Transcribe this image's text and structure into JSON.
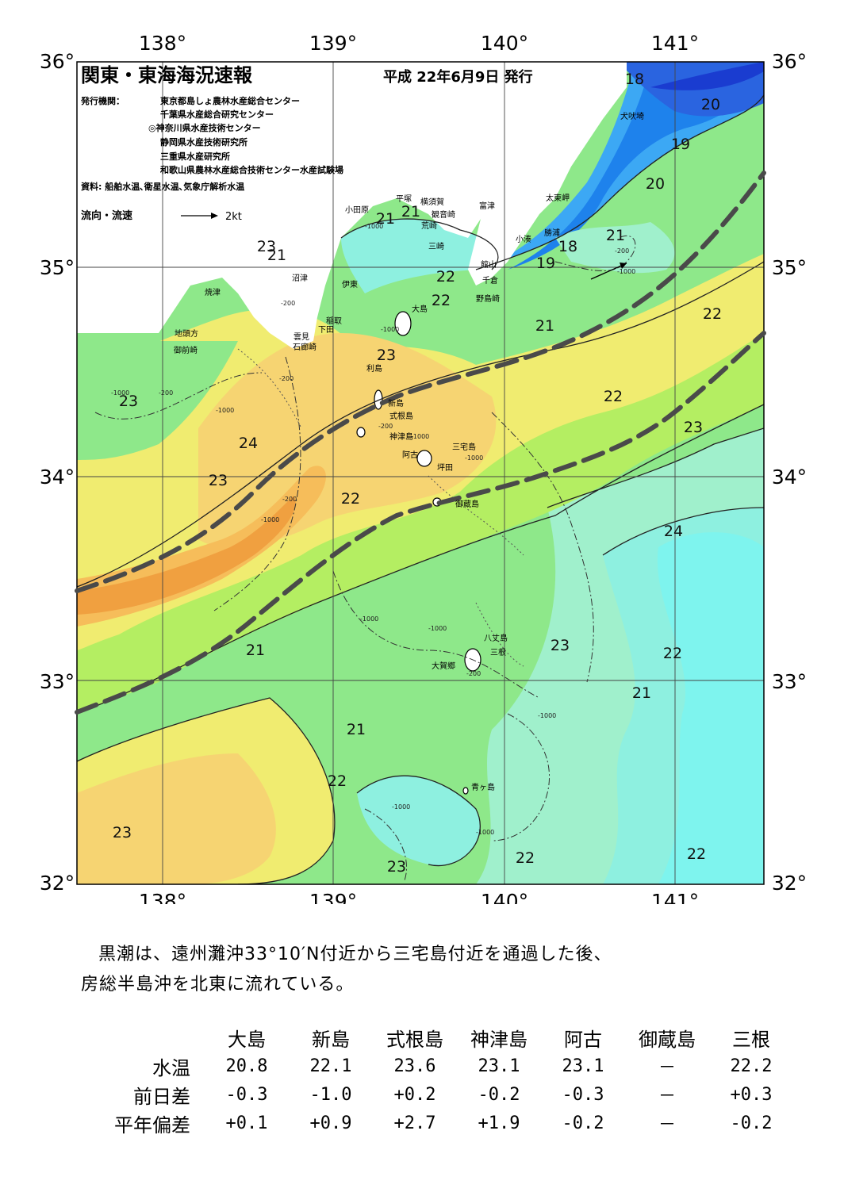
{
  "header": {
    "title": "関東・東海海況速報",
    "date": "平成 22年6月9日 発行",
    "issuer_label": "発行機関：",
    "issuers": [
      "東京都島しょ農林水産総合センター",
      "千葉県水産総合研究センター",
      "◎神奈川県水産技術センター",
      "静岡県水産技術研究所",
      "三重県水産研究所",
      "和歌山県農林水産総合技術センター水産試験場"
    ],
    "source": "資料: 船舶水温､衛星水温､気象庁解析水温",
    "current_legend": "流向・流速",
    "current_scale": "2kt"
  },
  "axes": {
    "lon_labels": [
      "138°",
      "139°",
      "140°",
      "141°"
    ],
    "lat_labels": [
      "36°",
      "35°",
      "34°",
      "33°",
      "32°"
    ]
  },
  "isotherm_labels": [
    "18",
    "20",
    "19",
    "20",
    "21",
    "21",
    "21",
    "23",
    "21",
    "22",
    "22",
    "18",
    "19",
    "21",
    "22",
    "23",
    "23",
    "22",
    "23",
    "24",
    "23",
    "22",
    "24",
    "21",
    "23",
    "22",
    "21",
    "21",
    "22",
    "23",
    "23",
    "22",
    "22",
    "21"
  ],
  "place_names": [
    "犬吠埼",
    "太東岬",
    "勝浦",
    "小湊",
    "富津",
    "横須賀",
    "観音崎",
    "荒崎",
    "平塚",
    "小田原",
    "三崎",
    "館山",
    "千倉",
    "野島崎",
    "沼津",
    "伊東",
    "大島",
    "焼津",
    "稲取",
    "下田",
    "雲見",
    "石廊崎",
    "地頭方",
    "御前崎",
    "利島",
    "新島",
    "式根島",
    "神津島",
    "三宅島",
    "阿古",
    "坪田",
    "御蔵島",
    "八丈島",
    "三根",
    "大賀郷",
    "青ヶ島"
  ],
  "depth_labels": [
    "-1000",
    "-200",
    "-1000",
    "-200",
    "-1000",
    "-200",
    "-1000",
    "-200",
    "-1000",
    "-200",
    "-1000",
    "-1000",
    "-1000",
    "-200",
    "-1000",
    "-1000",
    "-200",
    "-1000",
    "-1000",
    "-1000"
  ],
  "legend_colors": {
    "c18": "#1e82ec",
    "c19": "#3ca8f4",
    "c20": "#5bd4f4",
    "c21": "#8ef0e0",
    "c22": "#8ee88a",
    "c23": "#b4ee62",
    "c24": "#f0ec70",
    "c25": "#f6d472",
    "c26": "#f6bd5a",
    "c27": "#f0a040",
    "land": "#ffffff",
    "kuroshio_axis": "#4a4a4a"
  },
  "summary": {
    "line1": "黒潮は、遠州灘沖33°10′N付近から三宅島付近を通過した後、",
    "line2": "房総半島沖を北東に流れている。"
  },
  "table": {
    "columns": [
      "大島",
      "新島",
      "式根島",
      "神津島",
      "阿古",
      "御蔵島",
      "三根"
    ],
    "rows": [
      {
        "label": "水温",
        "values": [
          "20.8",
          "22.1",
          "23.6",
          "23.1",
          "23.1",
          "－",
          "22.2"
        ]
      },
      {
        "label": "前日差",
        "values": [
          "-0.3",
          "-1.0",
          "+0.2",
          "-0.2",
          "-0.3",
          "－",
          "+0.3"
        ]
      },
      {
        "label": "平年偏差",
        "values": [
          "+0.1",
          "+0.9",
          "+2.7",
          "+1.9",
          "-0.2",
          "－",
          "-0.2"
        ]
      }
    ]
  }
}
